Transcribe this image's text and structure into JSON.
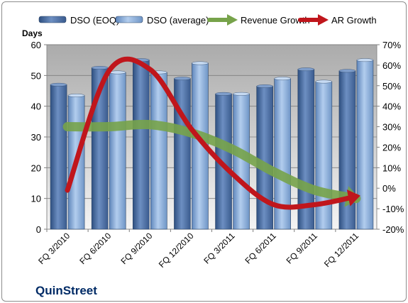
{
  "chart_data": {
    "type": "bar",
    "title": "",
    "categories": [
      "FQ 3/2010",
      "FQ 6/2010",
      "FQ 9/2010",
      "FQ 12/2010",
      "FQ 3/2011",
      "FQ 6/2011",
      "FQ 9/2011",
      "FQ 12/2011"
    ],
    "y_left": {
      "label": "Days",
      "lim": [
        0,
        60
      ],
      "ticks": [
        0,
        10,
        20,
        30,
        40,
        50,
        60
      ]
    },
    "y_right": {
      "lim": [
        -20,
        70
      ],
      "ticks": [
        "-20%",
        "-10%",
        "0%",
        "10%",
        "20%",
        "30%",
        "40%",
        "50%",
        "60%",
        "70%"
      ]
    },
    "series": [
      {
        "name": "DSO (EOQ)",
        "type": "bar",
        "axis": "left",
        "color": "#4a6fa8",
        "values": [
          47,
          52.5,
          55,
          49,
          44,
          46.5,
          52,
          51.5
        ]
      },
      {
        "name": "DSO (average)",
        "type": "bar",
        "axis": "left",
        "color": "#8fb2dc",
        "values": [
          43.5,
          51,
          51,
          54,
          44,
          49,
          48,
          55
        ]
      },
      {
        "name": "Revenue Growth",
        "type": "line",
        "axis": "right",
        "unit": "%",
        "color": "#77a34a",
        "values": [
          30,
          30,
          31,
          27,
          19,
          8,
          -1,
          -5
        ]
      },
      {
        "name": "AR Growth",
        "type": "line",
        "axis": "right",
        "unit": "%",
        "color": "#c0161c",
        "values": [
          -1,
          57,
          58,
          29,
          7,
          -8,
          -8,
          -4
        ]
      }
    ],
    "legend_position": "top",
    "grid": true,
    "company": "QuinStreet"
  }
}
